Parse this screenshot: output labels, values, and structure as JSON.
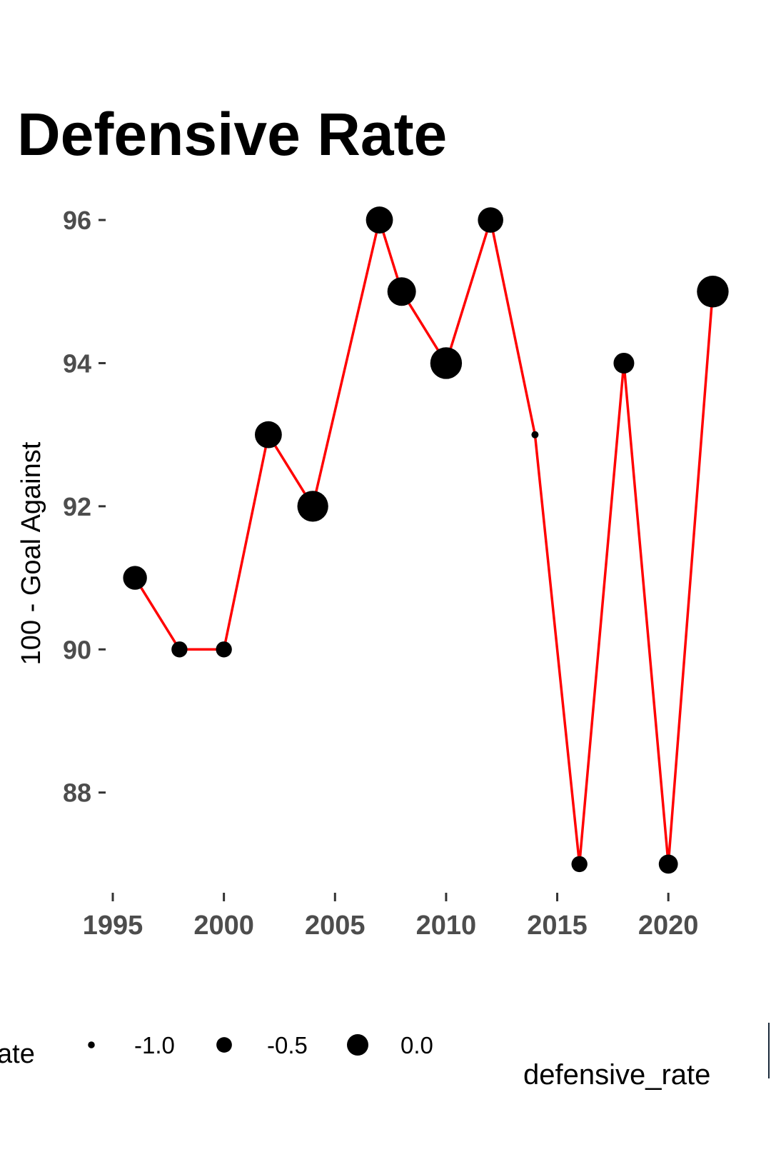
{
  "chart_data": {
    "type": "line",
    "title": "Defensive Rate",
    "xlabel": "",
    "ylabel": "100 - Goal Against",
    "x": [
      1996,
      1998,
      2000,
      2002,
      2004,
      2007,
      2008,
      2010,
      2012,
      2014,
      2016,
      2018,
      2020,
      2022
    ],
    "y": [
      91,
      90,
      90,
      93,
      92,
      96,
      95,
      94,
      96,
      93,
      87,
      94,
      87,
      95
    ],
    "size": [
      -0.3,
      -0.8,
      -0.8,
      -0.1,
      0.15,
      -0.1,
      0.0,
      0.2,
      -0.2,
      -1.5,
      -0.8,
      -0.5,
      -0.6,
      0.2
    ],
    "xlim": [
      1995,
      2022.5
    ],
    "ylim": [
      86.5,
      96.2
    ],
    "xticks": [
      1995,
      2000,
      2005,
      2010,
      2015,
      2020
    ],
    "yticks": [
      88,
      90,
      92,
      94,
      96
    ],
    "line_color": "#ff0000",
    "point_color": "#000000",
    "grid": false,
    "legend": {
      "title": "ate",
      "position": "bottom",
      "entries": [
        {
          "label": "-1.0",
          "value": -1.0
        },
        {
          "label": "-0.5",
          "value": -0.5
        },
        {
          "label": "0.0",
          "value": 0.0
        }
      ],
      "secondary_title": "defensive_rate"
    }
  }
}
